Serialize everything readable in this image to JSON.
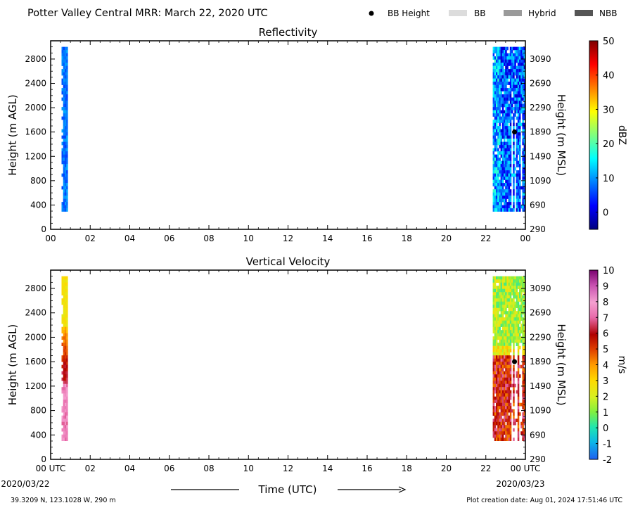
{
  "header": {
    "title": "Potter Valley Central MRR:  March 22, 2020 UTC",
    "legend": [
      {
        "label": "BB Height",
        "kind": "dot",
        "color": "#000000"
      },
      {
        "label": "BB",
        "kind": "box",
        "color": "#dcdcdc"
      },
      {
        "label": "Hybrid",
        "kind": "box",
        "color": "#9a9a9a"
      },
      {
        "label": "NBB",
        "kind": "box",
        "color": "#555555"
      }
    ]
  },
  "footer": {
    "location": "39.3209 N, 123.1028 W, 290 m",
    "created": "Plot creation date: Aug 01, 2024 17:51:46 UTC",
    "xlabel": "Time (UTC)",
    "date_start": "2020/03/22",
    "date_end": "2020/03/23"
  },
  "chart_data": [
    {
      "type": "heatmap",
      "title": "Reflectivity",
      "ylabel": "Height (m AGL)",
      "ylabel_right": "Height (m MSL)",
      "x_ticks": [
        "00",
        "02",
        "04",
        "06",
        "08",
        "10",
        "12",
        "14",
        "16",
        "18",
        "20",
        "22",
        "00"
      ],
      "xlim": [
        0,
        24
      ],
      "ylim": [
        0,
        3100
      ],
      "y_ticks": [
        0,
        400,
        800,
        1200,
        1600,
        2000,
        2400,
        2800
      ],
      "y_ticks_right": [
        "290",
        "690",
        "1090",
        "1490",
        "1890",
        "2290",
        "2690",
        "3090"
      ],
      "colorbar": {
        "label": "dBZ",
        "min": -5,
        "max": 50,
        "ticks": [
          0,
          10,
          20,
          30,
          40,
          50
        ]
      },
      "data_regions": [
        {
          "t_start": 0.55,
          "t_end": 0.9,
          "h_start": 300,
          "h_end": 3000,
          "values_dBZ": [
            3,
            12
          ]
        },
        {
          "t_start": 22.35,
          "t_end": 24.0,
          "h_start": 300,
          "h_end": 3000,
          "values_dBZ": [
            -2,
            20
          ]
        }
      ],
      "bb_height": {
        "time": 23.45,
        "height": 1600
      }
    },
    {
      "type": "heatmap",
      "title": "Vertical Velocity",
      "ylabel": "Height (m AGL)",
      "ylabel_right": "Height (m MSL)",
      "x_ticks": [
        "00 UTC",
        "02",
        "04",
        "06",
        "08",
        "10",
        "12",
        "14",
        "16",
        "18",
        "20",
        "22",
        "00 UTC"
      ],
      "xlim": [
        0,
        24
      ],
      "ylim": [
        0,
        3100
      ],
      "y_ticks": [
        0,
        400,
        800,
        1200,
        1600,
        2000,
        2400,
        2800
      ],
      "y_ticks_right": [
        "290",
        "690",
        "1090",
        "1490",
        "1890",
        "2290",
        "2690",
        "3090"
      ],
      "colorbar": {
        "label": "m/s",
        "min": -2,
        "max": 10,
        "ticks": [
          -2,
          -1,
          0,
          1,
          2,
          3,
          4,
          5,
          6,
          7,
          8,
          9,
          10
        ]
      },
      "data_regions": [
        {
          "t_start": 0.55,
          "t_end": 0.9,
          "h_start": 300,
          "h_end": 3000,
          "values_ms": [
            2,
            8
          ]
        },
        {
          "t_start": 22.35,
          "t_end": 24.0,
          "h_start": 300,
          "h_end": 3000,
          "values_ms": [
            0,
            7
          ]
        }
      ],
      "bb_height": {
        "time": 23.45,
        "height": 1600
      }
    }
  ]
}
